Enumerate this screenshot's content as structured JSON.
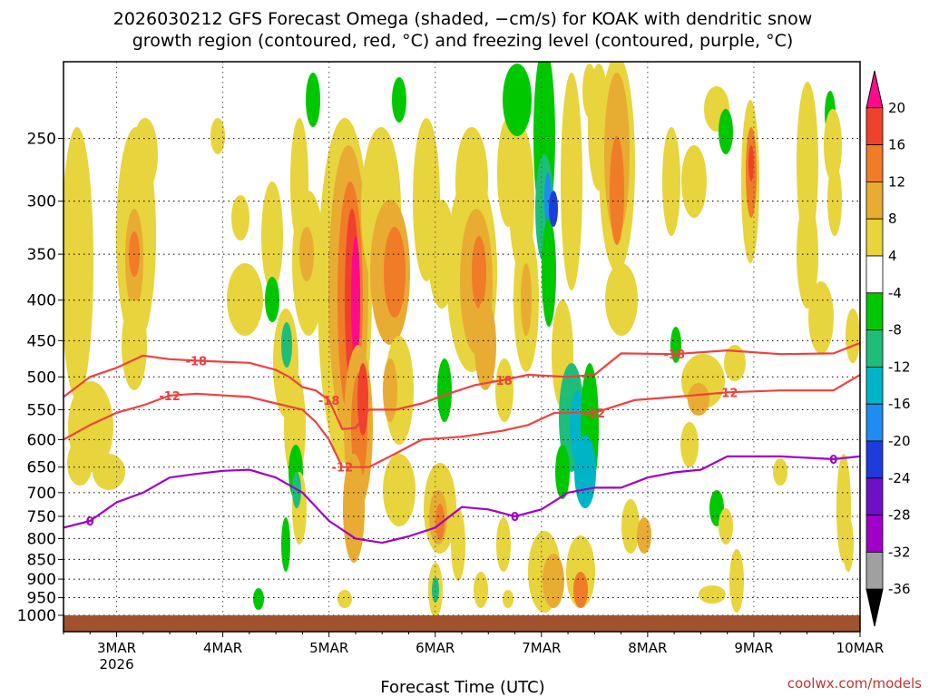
{
  "chart_data": {
    "type": "heatmap",
    "title_line1": "2026030212 GFS Forecast Omega (shaded, −cm/s) for KOAK with dendritic snow",
    "title_line2": "growth region (contoured, red, °C) and freezing level (contoured, purple, °C)",
    "xlabel": "Forecast Time (UTC)",
    "watermark": "coolwx.com/models",
    "x_ticks": [
      "3MAR",
      "4MAR",
      "5MAR",
      "6MAR",
      "7MAR",
      "8MAR",
      "9MAR",
      "10MAR"
    ],
    "x_tick_sub": "2026",
    "x_range": [
      "2026-03-02T12",
      "2026-03-10T00"
    ],
    "y_ticks": [
      250,
      300,
      350,
      400,
      450,
      500,
      550,
      600,
      650,
      700,
      750,
      800,
      850,
      900,
      950,
      1000
    ],
    "y_range": [
      1000,
      200
    ],
    "y_scale": "log-pressure",
    "grid": true,
    "colorbar": {
      "levels": [
        20,
        16,
        12,
        8,
        4,
        -4,
        -8,
        -12,
        -16,
        -20,
        -24,
        -28,
        -32,
        -36
      ],
      "colors": [
        "#ff0a8c",
        "#f0412d",
        "#f07c28",
        "#e8ac32",
        "#e8d43c",
        "#ffffff",
        "#00c800",
        "#1ebe78",
        "#00b4c8",
        "#1e8cf0",
        "#1e3cdc",
        "#6e10c8",
        "#a000c8",
        "#a0a0a0",
        "#000000"
      ]
    },
    "temperature_contours": [
      {
        "level": -18,
        "label": "-18",
        "color": "#f04040",
        "points": [
          [
            "2026-03-02T12",
            530
          ],
          [
            "2026-03-02T18",
            500
          ],
          [
            "2026-03-03T00",
            487
          ],
          [
            "2026-03-03T06",
            470
          ],
          [
            "2026-03-03T12",
            475
          ],
          [
            "2026-03-03T18",
            477
          ],
          [
            "2026-03-04T06",
            480
          ],
          [
            "2026-03-04T12",
            490
          ],
          [
            "2026-03-04T15",
            500
          ],
          [
            "2026-03-04T18",
            515
          ],
          [
            "2026-03-04T21",
            520
          ],
          [
            "2026-03-05T00",
            535
          ],
          [
            "2026-03-05T03",
            582
          ],
          [
            "2026-03-05T06",
            580
          ],
          [
            "2026-03-05T09",
            550
          ],
          [
            "2026-03-05T15",
            550
          ],
          [
            "2026-03-05T21",
            540
          ],
          [
            "2026-03-06T03",
            525
          ],
          [
            "2026-03-06T09",
            512
          ],
          [
            "2026-03-06T15",
            505
          ],
          [
            "2026-03-06T21",
            497
          ],
          [
            "2026-03-07T06",
            500
          ],
          [
            "2026-03-07T12",
            497
          ],
          [
            "2026-03-07T18",
            467
          ],
          [
            "2026-03-08T06",
            468
          ],
          [
            "2026-03-08T18",
            463
          ],
          [
            "2026-03-09T06",
            468
          ],
          [
            "2026-03-09T18",
            467
          ],
          [
            "2026-03-10T00",
            453
          ]
        ]
      },
      {
        "level": -12,
        "label": "-12",
        "color": "#f04040",
        "points": [
          [
            "2026-03-02T12",
            600
          ],
          [
            "2026-03-02T18",
            575
          ],
          [
            "2026-03-03T00",
            555
          ],
          [
            "2026-03-03T06",
            543
          ],
          [
            "2026-03-03T12",
            528
          ],
          [
            "2026-03-03T18",
            525
          ],
          [
            "2026-03-04T06",
            530
          ],
          [
            "2026-03-04T12",
            540
          ],
          [
            "2026-03-04T18",
            550
          ],
          [
            "2026-03-04T21",
            570
          ],
          [
            "2026-03-05T00",
            600
          ],
          [
            "2026-03-05T03",
            650
          ],
          [
            "2026-03-05T09",
            650
          ],
          [
            "2026-03-05T15",
            625
          ],
          [
            "2026-03-05T21",
            600
          ],
          [
            "2026-03-06T06",
            595
          ],
          [
            "2026-03-06T15",
            585
          ],
          [
            "2026-03-06T21",
            575
          ],
          [
            "2026-03-07T03",
            555
          ],
          [
            "2026-03-07T12",
            555
          ],
          [
            "2026-03-07T21",
            535
          ],
          [
            "2026-03-08T06",
            530
          ],
          [
            "2026-03-08T18",
            523
          ],
          [
            "2026-03-09T06",
            520
          ],
          [
            "2026-03-09T18",
            520
          ],
          [
            "2026-03-10T00",
            497
          ]
        ]
      }
    ],
    "freezing_contour": {
      "level": 0,
      "label": "0",
      "color": "#a000c8",
      "points": [
        [
          "2026-03-02T12",
          775
        ],
        [
          "2026-03-02T18",
          760
        ],
        [
          "2026-03-03T00",
          720
        ],
        [
          "2026-03-03T06",
          700
        ],
        [
          "2026-03-03T12",
          670
        ],
        [
          "2026-03-03T18",
          663
        ],
        [
          "2026-03-04T00",
          657
        ],
        [
          "2026-03-04T06",
          655
        ],
        [
          "2026-03-04T12",
          670
        ],
        [
          "2026-03-04T18",
          700
        ],
        [
          "2026-03-05T00",
          760
        ],
        [
          "2026-03-05T06",
          800
        ],
        [
          "2026-03-05T12",
          810
        ],
        [
          "2026-03-05T18",
          795
        ],
        [
          "2026-03-06T00",
          775
        ],
        [
          "2026-03-06T06",
          730
        ],
        [
          "2026-03-06T12",
          735
        ],
        [
          "2026-03-06T18",
          750
        ],
        [
          "2026-03-07T00",
          735
        ],
        [
          "2026-03-07T06",
          700
        ],
        [
          "2026-03-07T12",
          690
        ],
        [
          "2026-03-07T18",
          690
        ],
        [
          "2026-03-08T00",
          670
        ],
        [
          "2026-03-08T06",
          660
        ],
        [
          "2026-03-08T12",
          655
        ],
        [
          "2026-03-08T18",
          630
        ],
        [
          "2026-03-09T06",
          630
        ],
        [
          "2026-03-09T18",
          635
        ],
        [
          "2026-03-10T00",
          630
        ]
      ]
    }
  }
}
